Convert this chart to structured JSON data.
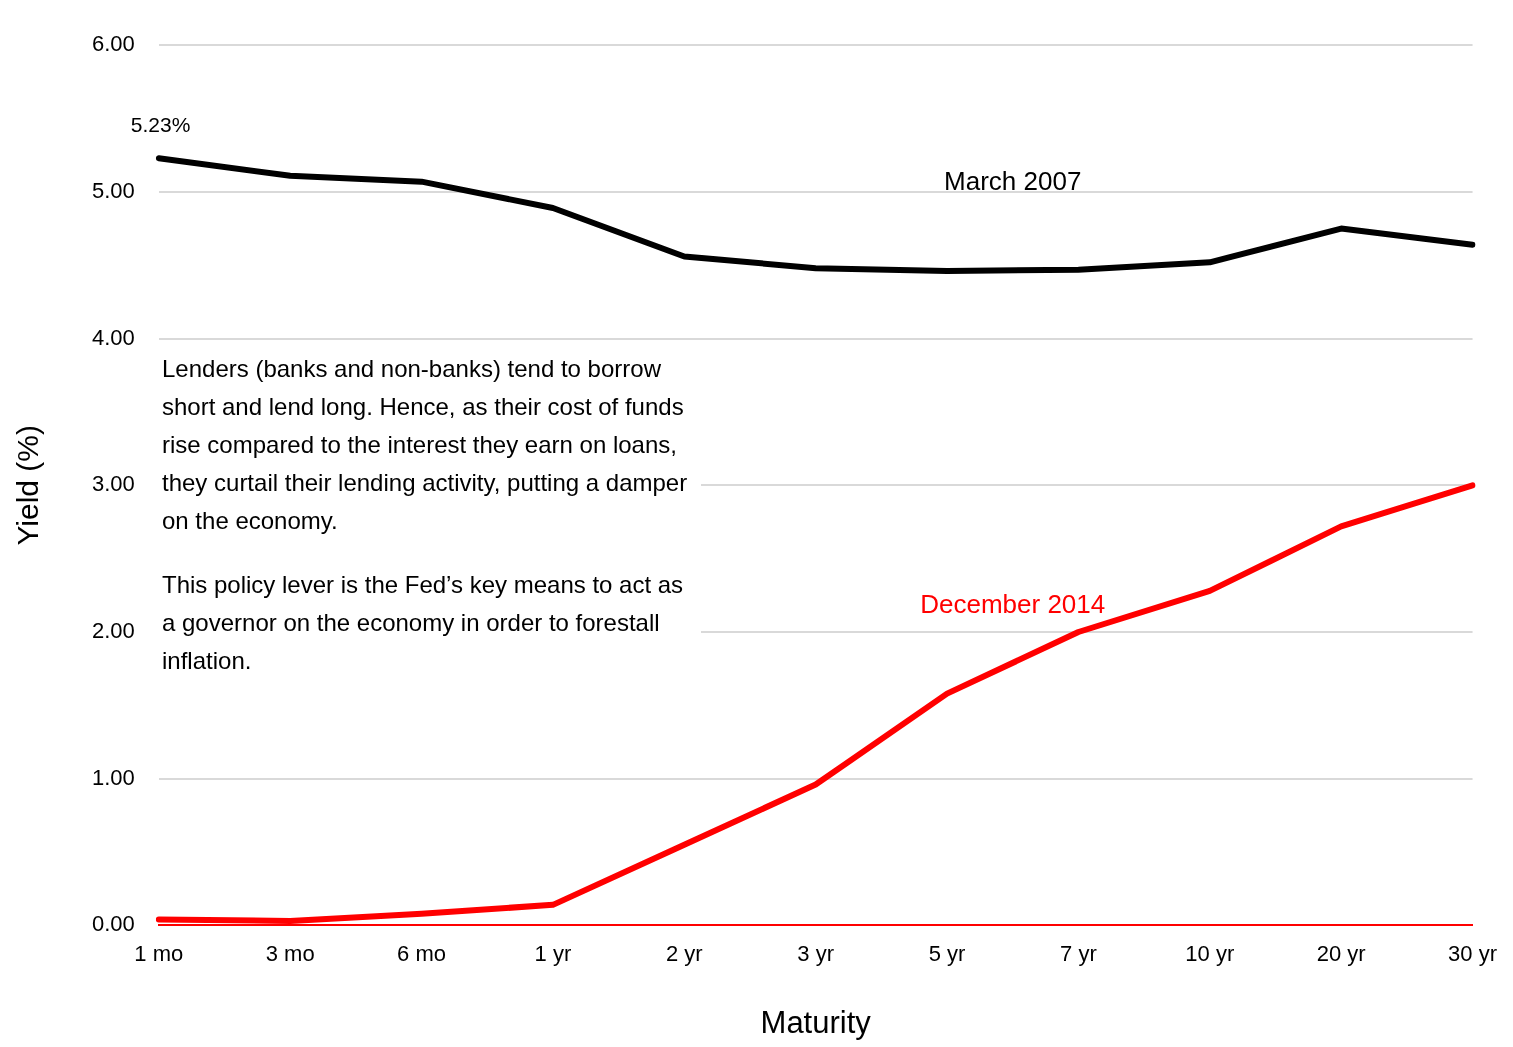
{
  "chart_data": {
    "type": "line",
    "xlabel": "Maturity",
    "ylabel": "Yield (%)",
    "categories": [
      "1 mo",
      "3 mo",
      "6 mo",
      "1 yr",
      "2 yr",
      "3 yr",
      "5 yr",
      "7 yr",
      "10 yr",
      "20 yr",
      "30 yr"
    ],
    "series": [
      {
        "name": "March 2007",
        "color": "#000000",
        "values": [
          5.23,
          5.11,
          5.07,
          4.89,
          4.56,
          4.48,
          4.46,
          4.47,
          4.52,
          4.75,
          4.64
        ]
      },
      {
        "name": "December 2014",
        "color": "#ff0000",
        "values": [
          0.04,
          0.03,
          0.08,
          0.14,
          0.55,
          0.96,
          1.58,
          2.0,
          2.28,
          2.72,
          3.0
        ]
      }
    ],
    "ylim": [
      0,
      6
    ],
    "yticks": [
      {
        "value": 0,
        "label": "0.00"
      },
      {
        "value": 1,
        "label": "1.00"
      },
      {
        "value": 2,
        "label": "2.00"
      },
      {
        "value": 3,
        "label": "3.00"
      },
      {
        "value": 4,
        "label": "4.00"
      },
      {
        "value": 5,
        "label": "5.00"
      },
      {
        "value": 6,
        "label": "6.00"
      }
    ],
    "grid": "y",
    "legend": false,
    "marker": "none",
    "line_style": "solid",
    "annotations": [
      {
        "text": "5.23%",
        "x": "1 mo",
        "y": 5.23
      },
      "Lenders (banks and non-banks) tend to borrow short and lend long. Hence, as their cost of funds rise compared to the interest they earn on loans, they curtail their lending activity, putting a damper on the economy.",
      "This policy lever is the Fed’s key means to act as a governor on the economy in order to forestall inflation."
    ]
  }
}
